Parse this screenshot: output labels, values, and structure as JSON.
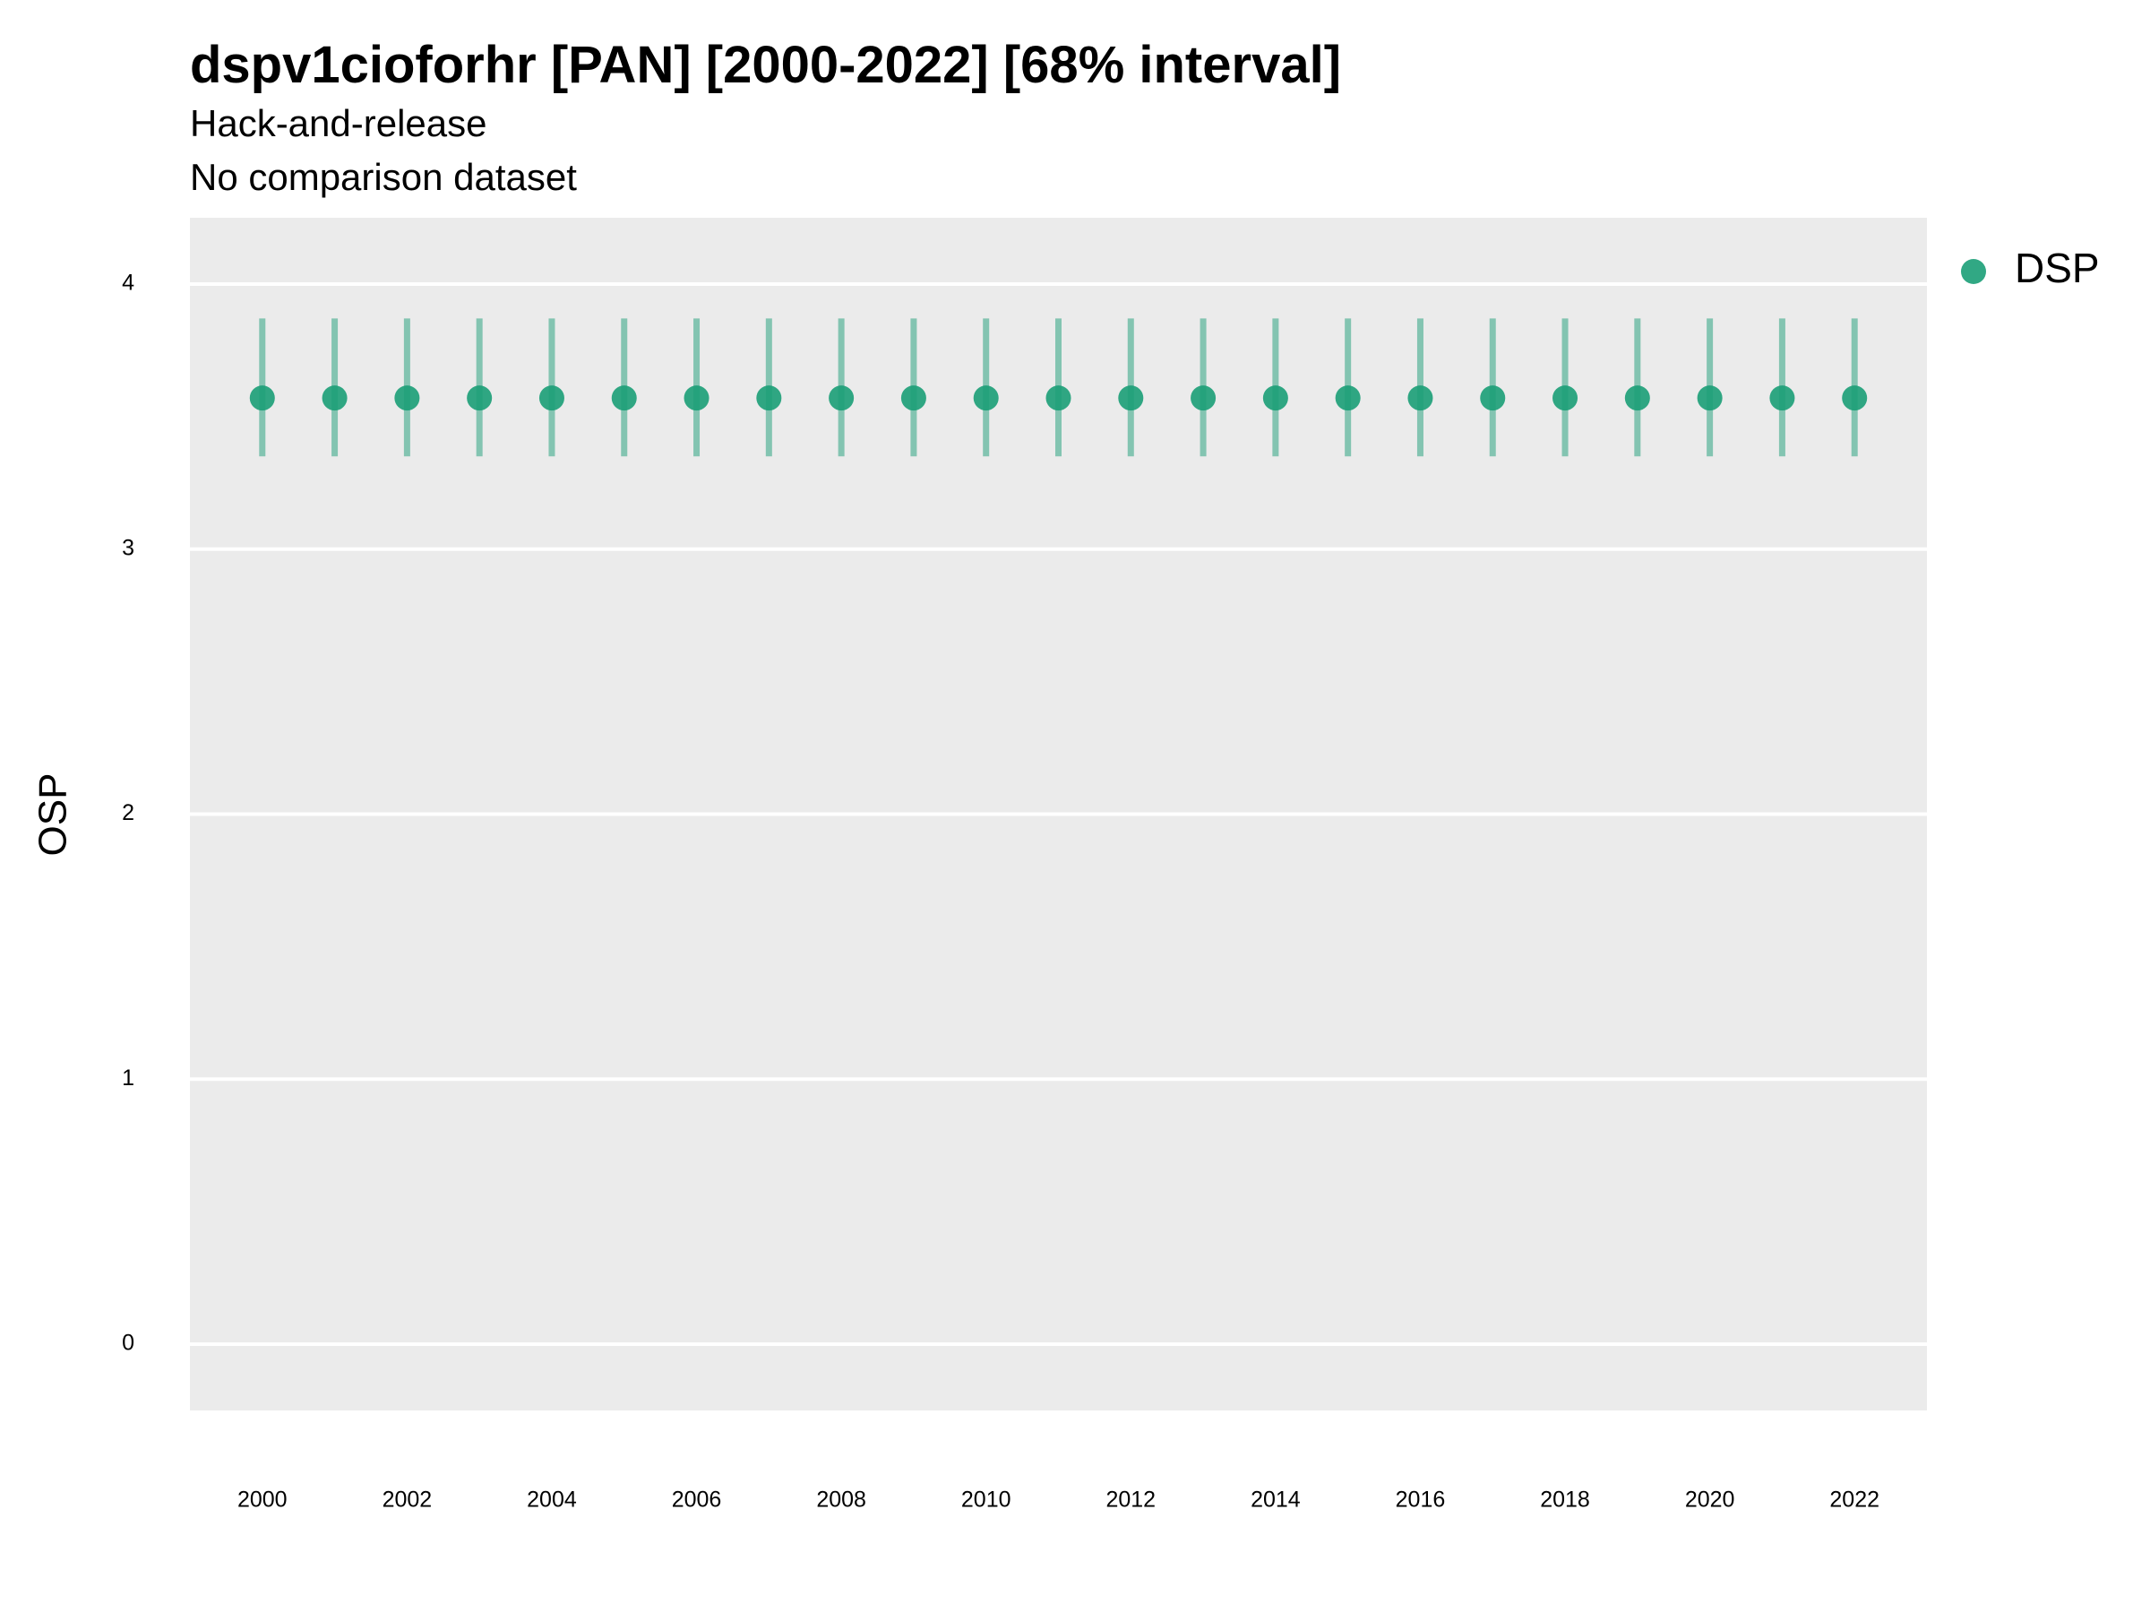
{
  "chart_data": {
    "type": "pointrange",
    "title": "dspv1cioforhr [PAN] [2000-2022] [68% interval]",
    "subtitle": [
      "Hack-and-release",
      "No comparison dataset"
    ],
    "y_label": "OSP",
    "x": [
      2000,
      2001,
      2002,
      2003,
      2004,
      2005,
      2006,
      2007,
      2008,
      2009,
      2010,
      2011,
      2012,
      2013,
      2014,
      2015,
      2016,
      2017,
      2018,
      2019,
      2020,
      2021,
      2022
    ],
    "series": [
      {
        "name": "DSP",
        "color": "#1b9e77",
        "values": [
          3.57,
          3.57,
          3.57,
          3.57,
          3.57,
          3.57,
          3.57,
          3.57,
          3.57,
          3.57,
          3.57,
          3.57,
          3.57,
          3.57,
          3.57,
          3.57,
          3.57,
          3.57,
          3.57,
          3.57,
          3.57,
          3.57,
          3.57
        ],
        "lower": [
          3.35,
          3.35,
          3.35,
          3.35,
          3.35,
          3.35,
          3.35,
          3.35,
          3.35,
          3.35,
          3.35,
          3.35,
          3.35,
          3.35,
          3.35,
          3.35,
          3.35,
          3.35,
          3.35,
          3.35,
          3.35,
          3.35,
          3.35
        ],
        "upper": [
          3.87,
          3.87,
          3.87,
          3.87,
          3.87,
          3.87,
          3.87,
          3.87,
          3.87,
          3.87,
          3.87,
          3.87,
          3.87,
          3.87,
          3.87,
          3.87,
          3.87,
          3.87,
          3.87,
          3.87,
          3.87,
          3.87,
          3.87
        ]
      }
    ],
    "xlim": [
      1999,
      2023
    ],
    "xticks": [
      2000,
      2002,
      2004,
      2006,
      2008,
      2010,
      2012,
      2014,
      2016,
      2018,
      2020,
      2022
    ],
    "ylim": [
      -0.25,
      4.25
    ],
    "yticks": [
      0,
      1,
      2,
      3,
      4
    ],
    "grid": true,
    "legend": "right"
  }
}
